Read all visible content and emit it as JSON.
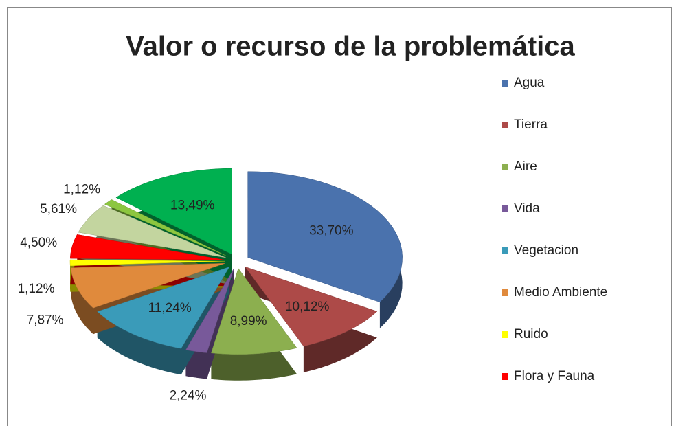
{
  "chart_data": {
    "type": "pie",
    "title": "Valor o recurso de la problemática",
    "categories": [
      "Agua",
      "Tierra",
      "Aire",
      "Vida",
      "Vegetacion",
      "Medio Ambiente",
      "Ruido",
      "Flora y Fauna",
      null,
      null,
      null
    ],
    "values": [
      33.7,
      10.12,
      8.99,
      2.24,
      11.24,
      7.87,
      1.12,
      4.5,
      5.61,
      1.12,
      13.49
    ],
    "value_labels": [
      "33,70%",
      "10,12%",
      "8,99%",
      "2,24%",
      "11,24%",
      "7,87%",
      "1,12%",
      "4,50%",
      "5,61%",
      "1,12%",
      "13,49%"
    ],
    "colors": [
      "#4a72ad",
      "#ad4a48",
      "#8caf4f",
      "#78599a",
      "#3a9bb9",
      "#e08a3c",
      "#ffff00",
      "#ff0000",
      "#c3d59f",
      "#8cc63f",
      "#00b050"
    ],
    "legend": "right"
  }
}
